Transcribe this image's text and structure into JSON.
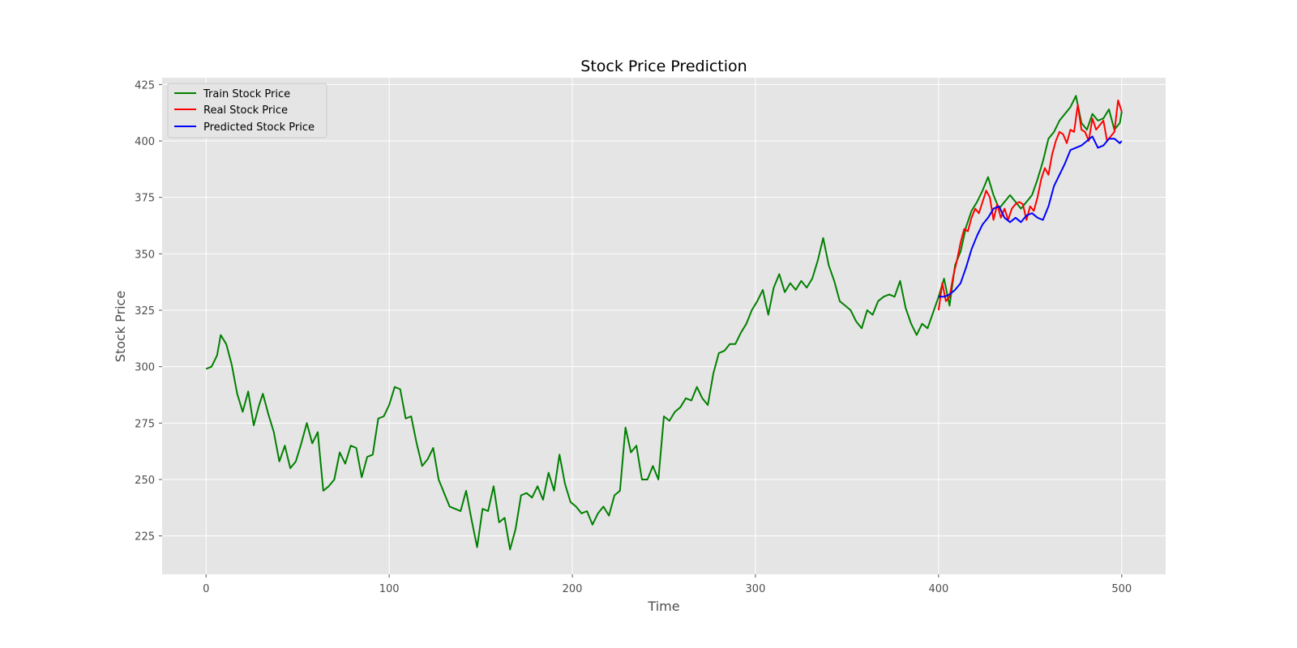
{
  "chart_data": {
    "type": "line",
    "title": "Stock Price Prediction",
    "xlabel": "Time",
    "ylabel": "Stock Price",
    "xlim": [
      -24,
      524
    ],
    "ylim": [
      208,
      428
    ],
    "xticks": [
      0,
      100,
      200,
      300,
      400,
      500
    ],
    "yticks": [
      225,
      250,
      275,
      300,
      325,
      350,
      375,
      400,
      425
    ],
    "grid": true,
    "legend_position": "top-left",
    "series": [
      {
        "name": "Train Stock Price",
        "color": "#008000",
        "x": [
          0,
          3,
          6,
          8,
          11,
          14,
          17,
          20,
          23,
          26,
          29,
          31,
          34,
          37,
          40,
          43,
          46,
          49,
          52,
          55,
          58,
          61,
          64,
          67,
          70,
          73,
          76,
          79,
          82,
          85,
          88,
          91,
          94,
          97,
          100,
          103,
          106,
          109,
          112,
          115,
          118,
          121,
          124,
          127,
          130,
          133,
          136,
          139,
          142,
          145,
          148,
          151,
          154,
          157,
          160,
          163,
          166,
          169,
          172,
          175,
          178,
          181,
          184,
          187,
          190,
          193,
          196,
          199,
          202,
          205,
          208,
          211,
          214,
          217,
          220,
          223,
          226,
          229,
          232,
          235,
          238,
          241,
          244,
          247,
          250,
          253,
          256,
          259,
          262,
          265,
          268,
          271,
          274,
          277,
          280,
          283,
          286,
          289,
          292,
          295,
          298,
          301,
          304,
          307,
          310,
          313,
          316,
          319,
          322,
          325,
          328,
          331,
          334,
          337,
          340,
          343,
          346,
          349,
          352,
          355,
          358,
          361,
          364,
          367,
          370,
          373,
          376,
          379,
          382,
          385,
          388,
          391,
          394,
          397,
          400,
          403,
          406,
          409,
          412,
          415,
          418,
          421,
          424,
          427,
          430,
          433,
          436,
          439,
          442,
          445,
          448,
          451,
          454,
          457,
          460,
          463,
          466,
          469,
          472,
          475,
          478,
          481,
          484,
          487,
          490,
          493,
          496,
          499,
          500
        ],
        "y": [
          299,
          300,
          305,
          314,
          310,
          301,
          288,
          280,
          289,
          274,
          283,
          288,
          279,
          271,
          258,
          265,
          255,
          258,
          266,
          275,
          266,
          271,
          245,
          247,
          250,
          262,
          257,
          265,
          264,
          251,
          260,
          261,
          277,
          278,
          283,
          291,
          290,
          277,
          278,
          266,
          256,
          259,
          264,
          250,
          244,
          238,
          237,
          236,
          245,
          232,
          220,
          237,
          236,
          247,
          231,
          233,
          219,
          228,
          243,
          244,
          242,
          247,
          241,
          253,
          245,
          261,
          248,
          240,
          238,
          235,
          236,
          230,
          235,
          238,
          234,
          243,
          245,
          273,
          262,
          265,
          250,
          250,
          256,
          250,
          278,
          276,
          280,
          282,
          286,
          285,
          291,
          286,
          283,
          297,
          306,
          307,
          310,
          310,
          315,
          319,
          325,
          329,
          334,
          323,
          335,
          341,
          333,
          337,
          334,
          338,
          335,
          339,
          347,
          357,
          345,
          338,
          329,
          327,
          325,
          320,
          317,
          325,
          323,
          329,
          331,
          332,
          331,
          338,
          326,
          319,
          314,
          319,
          317,
          324,
          331,
          339,
          327,
          345,
          351,
          362,
          369,
          373,
          378,
          384,
          376,
          370,
          373,
          376,
          373,
          370,
          373,
          376,
          383,
          391,
          401,
          404,
          409,
          412,
          415,
          420,
          408,
          405,
          412,
          409,
          410,
          414,
          405,
          408,
          413
        ]
      },
      {
        "name": "Real Stock Price",
        "color": "#ff0000",
        "x": [
          400,
          402,
          404,
          406,
          408,
          410,
          412,
          414,
          416,
          418,
          420,
          422,
          424,
          426,
          428,
          430,
          432,
          434,
          436,
          438,
          440,
          442,
          444,
          446,
          448,
          450,
          452,
          454,
          456,
          458,
          460,
          462,
          464,
          466,
          468,
          470,
          472,
          474,
          476,
          478,
          480,
          482,
          484,
          486,
          488,
          490,
          492,
          494,
          496,
          498,
          500
        ],
        "y": [
          325,
          337,
          329,
          331,
          340,
          347,
          355,
          361,
          360,
          366,
          370,
          368,
          373,
          378,
          375,
          365,
          372,
          366,
          370,
          365,
          370,
          372,
          373,
          372,
          365,
          371,
          369,
          375,
          383,
          388,
          385,
          394,
          400,
          404,
          403,
          399,
          405,
          404,
          416,
          405,
          404,
          400,
          410,
          405,
          407,
          409,
          400,
          402,
          404,
          418,
          413
        ]
      },
      {
        "name": "Predicted Stock Price",
        "color": "#0000ff",
        "x": [
          400,
          403,
          406,
          409,
          412,
          415,
          418,
          421,
          424,
          427,
          430,
          433,
          436,
          439,
          442,
          445,
          448,
          451,
          454,
          457,
          460,
          463,
          466,
          469,
          472,
          475,
          478,
          481,
          484,
          487,
          490,
          493,
          496,
          499,
          500
        ],
        "y": [
          331,
          331,
          332,
          334,
          337,
          344,
          352,
          358,
          363,
          366,
          370,
          371,
          366,
          364,
          366,
          364,
          367,
          368,
          366,
          365,
          371,
          380,
          385,
          390,
          396,
          397,
          398,
          400,
          402,
          397,
          398,
          401,
          401,
          399,
          400
        ]
      }
    ]
  }
}
